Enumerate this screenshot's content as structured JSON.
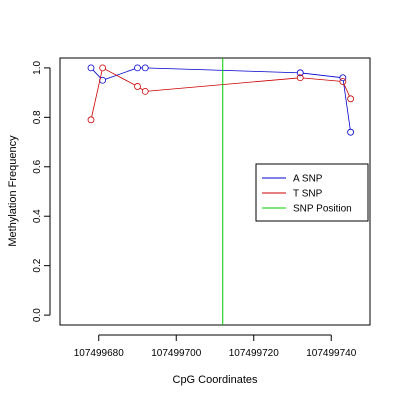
{
  "chart_data": {
    "type": "line",
    "xlabel": "CpG Coordinates",
    "ylabel": "Methylation Frequency",
    "xlim": [
      107499670,
      107499750
    ],
    "ylim": [
      -0.04,
      1.04
    ],
    "x_ticks": [
      107499680,
      107499700,
      107499720,
      107499740
    ],
    "x_tick_labels": [
      "107499680",
      "107499700",
      "107499720",
      "107499740"
    ],
    "y_ticks": [
      0.0,
      0.2,
      0.4,
      0.6,
      0.8,
      1.0
    ],
    "y_tick_labels": [
      "0.0",
      "0.2",
      "0.4",
      "0.6",
      "0.8",
      "1.0"
    ],
    "grid": false,
    "legend_position": "right",
    "series": [
      {
        "name": "A SNP",
        "color": "#0000cc",
        "x": [
          107499678,
          107499681,
          107499690,
          107499692,
          107499732,
          107499743,
          107499745
        ],
        "y": [
          1.0,
          0.95,
          1.0,
          1.0,
          0.98,
          0.96,
          0.74
        ]
      },
      {
        "name": "T SNP",
        "color": "#cc0000",
        "x": [
          107499678,
          107499681,
          107499690,
          107499692,
          107499732,
          107499743,
          107499745
        ],
        "y": [
          0.79,
          1.0,
          0.925,
          0.905,
          0.96,
          0.945,
          0.875
        ]
      },
      {
        "name": "SNP Position",
        "color": "#00cc00",
        "type": "vline",
        "x": [
          107499712
        ]
      }
    ]
  }
}
